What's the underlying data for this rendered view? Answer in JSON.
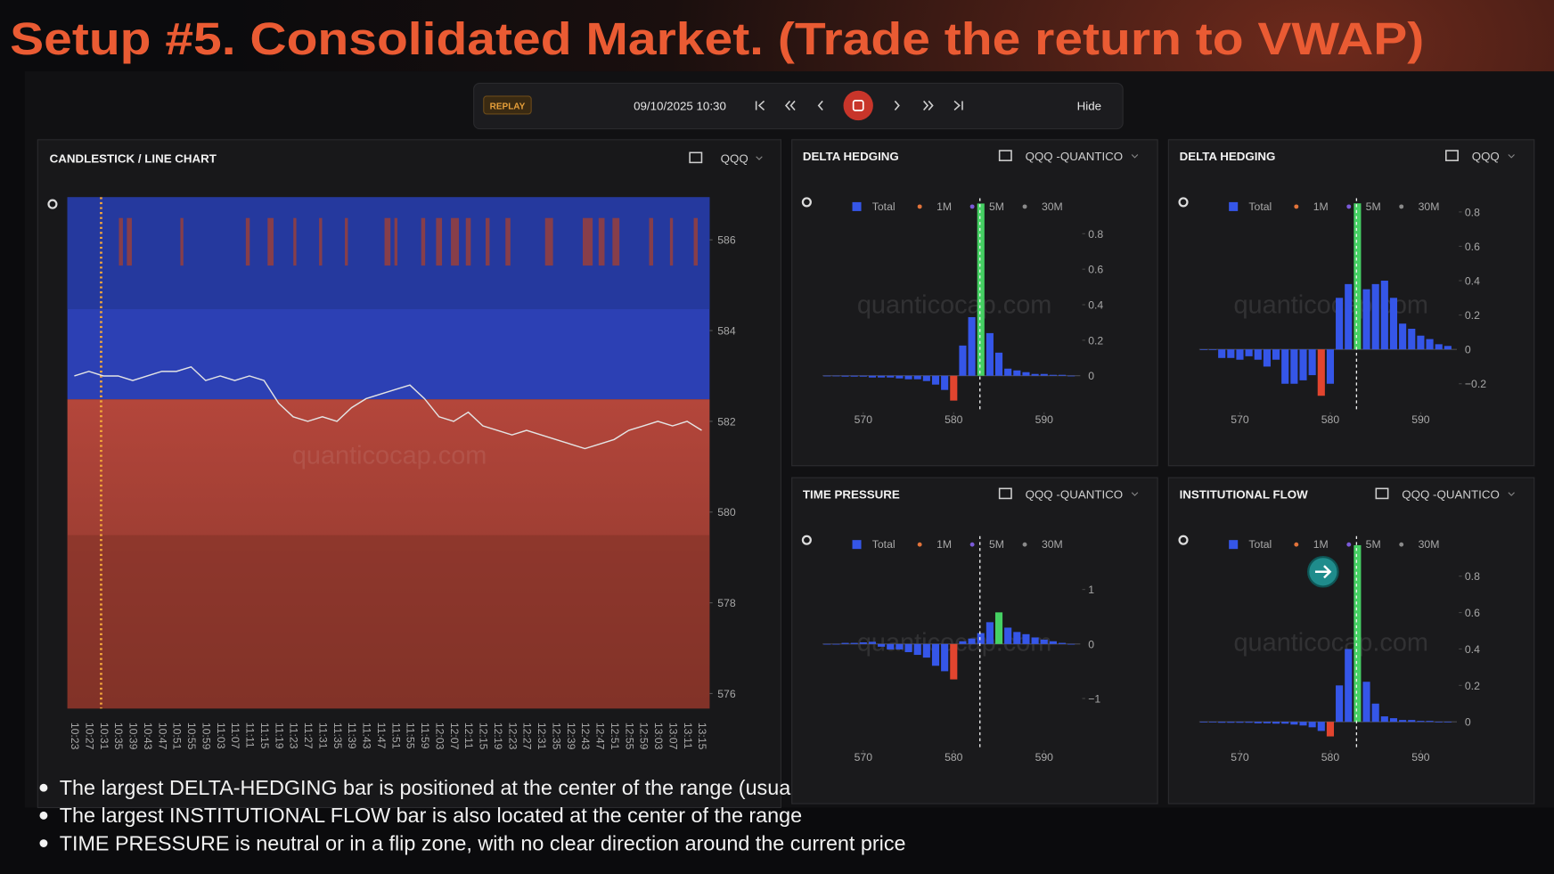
{
  "title": "Setup #5. Consolidated Market. (Trade the return to VWAP)",
  "toolbar": {
    "mode": "REPLAY",
    "datetime": "09/10/2025 10:30",
    "hide": "Hide"
  },
  "candlestick": {
    "type": "line",
    "title": "CANDLESTICK / LINE CHART",
    "symbol": "QQQ",
    "watermark": "quanticocap.com",
    "color": "#e4e4e4",
    "x": [
      "10:23",
      "10:27",
      "10:31",
      "10:35",
      "10:39",
      "10:43",
      "10:47",
      "10:51",
      "10:55",
      "10:59",
      "11:03",
      "11:07",
      "11:11",
      "11:15",
      "11:19",
      "11:23",
      "11:27",
      "11:31",
      "11:35",
      "11:39",
      "11:43",
      "11:47",
      "11:51",
      "11:55",
      "11:59",
      "12:03",
      "12:07",
      "12:11",
      "12:15",
      "12:19",
      "12:23",
      "12:27",
      "12:31",
      "12:35",
      "12:39",
      "12:43",
      "12:47",
      "12:51",
      "12:55",
      "12:59",
      "13:03",
      "13:07",
      "13:11",
      "13:15"
    ],
    "values": [
      583.0,
      583.1,
      583.0,
      583.0,
      582.9,
      583.0,
      583.1,
      583.1,
      583.2,
      582.9,
      583.0,
      582.9,
      583.0,
      582.9,
      582.4,
      582.1,
      582.0,
      582.1,
      582.0,
      582.3,
      582.5,
      582.6,
      582.7,
      582.8,
      582.5,
      582.1,
      582.0,
      582.2,
      581.9,
      581.8,
      581.7,
      581.8,
      581.7,
      581.6,
      581.5,
      581.4,
      581.5,
      581.6,
      581.8,
      581.9,
      582.0,
      581.9,
      582.0,
      581.8
    ],
    "ylim": [
      575.67,
      586.94
    ],
    "yticks": [
      576,
      578,
      580,
      582,
      584,
      586
    ]
  },
  "histograms": [
    {
      "type": "bar",
      "title": "DELTA HEDGING",
      "symbol": "QQQ -QUANTICO",
      "watermark": "quanticocap.com",
      "legend": [
        {
          "name": "Total",
          "color": "#3556e8"
        },
        {
          "name": "1M",
          "color": "#e2733a"
        },
        {
          "name": "5M",
          "color": "#7a5ad8"
        },
        {
          "name": "30M",
          "color": "#8a8a8a"
        }
      ],
      "color": "#3556e8",
      "max_color": "#45d063",
      "min_color": "#e2452f",
      "x": [
        566,
        567,
        568,
        569,
        570,
        571,
        572,
        573,
        574,
        575,
        576,
        577,
        578,
        579,
        580,
        581,
        582,
        583,
        584,
        585,
        586,
        587,
        588,
        589,
        590,
        591,
        592,
        593
      ],
      "values": [
        0,
        0,
        -0.005,
        -0.005,
        -0.005,
        -0.01,
        -0.01,
        -0.01,
        -0.015,
        -0.02,
        -0.02,
        -0.03,
        -0.05,
        -0.08,
        -0.14,
        0.17,
        0.33,
        0.97,
        0.24,
        0.13,
        0.04,
        0.03,
        0.02,
        0.01,
        0.01,
        0.005,
        0.005,
        0
      ],
      "price_line": 582.9,
      "xlim": [
        565.5,
        594
      ],
      "xticks": [
        570,
        580,
        590
      ],
      "ylim": [
        -0.2,
        1.0
      ],
      "yticks": [
        0,
        0.2,
        0.4,
        0.6,
        0.8
      ]
    },
    {
      "type": "bar",
      "title": "DELTA HEDGING",
      "symbol": "QQQ",
      "watermark": "quanticocap.com",
      "legend": [
        {
          "name": "Total",
          "color": "#3556e8"
        },
        {
          "name": "1M",
          "color": "#e2733a"
        },
        {
          "name": "5M",
          "color": "#7a5ad8"
        },
        {
          "name": "30M",
          "color": "#8a8a8a"
        }
      ],
      "color": "#3556e8",
      "max_color": "#45d063",
      "min_color": "#e2452f",
      "x": [
        566,
        567,
        568,
        569,
        570,
        571,
        572,
        573,
        574,
        575,
        576,
        577,
        578,
        579,
        580,
        581,
        582,
        583,
        584,
        585,
        586,
        587,
        588,
        589,
        590,
        591,
        592,
        593
      ],
      "values": [
        0,
        0,
        -0.05,
        -0.05,
        -0.06,
        -0.04,
        -0.06,
        -0.1,
        -0.06,
        -0.2,
        -0.2,
        -0.18,
        -0.15,
        -0.27,
        -0.2,
        0.3,
        0.38,
        0.85,
        0.35,
        0.38,
        0.4,
        0.3,
        0.15,
        0.12,
        0.08,
        0.06,
        0.03,
        0.02
      ],
      "price_line": 582.9,
      "xlim": [
        565.5,
        594
      ],
      "xticks": [
        570,
        580,
        590
      ],
      "ylim": [
        -0.36,
        0.88
      ],
      "yticks": [
        {
          "value": -0.2,
          "label": "−0.2"
        },
        0,
        0.2,
        0.4,
        0.6,
        0.8
      ]
    },
    {
      "type": "bar",
      "title": "TIME PRESSURE",
      "symbol": "QQQ -QUANTICO",
      "watermark": "quanticocap.com",
      "legend": [
        {
          "name": "Total",
          "color": "#3556e8"
        },
        {
          "name": "1M",
          "color": "#e2733a"
        },
        {
          "name": "5M",
          "color": "#7a5ad8"
        },
        {
          "name": "30M",
          "color": "#8a8a8a"
        }
      ],
      "color": "#3556e8",
      "max_color": "#45d063",
      "min_color": "#e2452f",
      "x": [
        566,
        567,
        568,
        569,
        570,
        571,
        572,
        573,
        574,
        575,
        576,
        577,
        578,
        579,
        580,
        581,
        582,
        583,
        584,
        585,
        586,
        587,
        588,
        589,
        590,
        591,
        592,
        593
      ],
      "values": [
        0,
        0,
        0.02,
        0.02,
        0.03,
        0.04,
        -0.05,
        -0.1,
        -0.1,
        -0.15,
        -0.2,
        -0.25,
        -0.4,
        -0.5,
        -0.65,
        0.05,
        0.1,
        0.2,
        0.4,
        0.58,
        0.3,
        0.22,
        0.18,
        0.12,
        0.08,
        0.05,
        0.02,
        0
      ],
      "price_line": 582.9,
      "xlim": [
        565.5,
        594
      ],
      "xticks": [
        570,
        580,
        590
      ],
      "ylim": [
        -1.93,
        1.98
      ],
      "yticks": [
        {
          "value": -1,
          "label": "−1"
        },
        0,
        1
      ]
    },
    {
      "type": "bar",
      "title": "INSTITUTIONAL FLOW",
      "symbol": "QQQ -QUANTICO",
      "watermark": "quanticocap.com",
      "legend": [
        {
          "name": "Total",
          "color": "#3556e8"
        },
        {
          "name": "1M",
          "color": "#e2733a"
        },
        {
          "name": "5M",
          "color": "#7a5ad8"
        },
        {
          "name": "30M",
          "color": "#8a8a8a"
        }
      ],
      "color": "#3556e8",
      "max_color": "#45d063",
      "min_color": "#e2452f",
      "x": [
        566,
        567,
        568,
        569,
        570,
        571,
        572,
        573,
        574,
        575,
        576,
        577,
        578,
        579,
        580,
        581,
        582,
        583,
        584,
        585,
        586,
        587,
        588,
        589,
        590,
        591,
        592,
        593
      ],
      "values": [
        0,
        0,
        -0.005,
        -0.005,
        -0.005,
        -0.005,
        -0.008,
        -0.008,
        -0.01,
        -0.01,
        -0.015,
        -0.02,
        -0.03,
        -0.05,
        -0.08,
        0.2,
        0.4,
        0.97,
        0.22,
        0.1,
        0.03,
        0.02,
        0.01,
        0.01,
        0.005,
        0.005,
        0,
        0
      ],
      "price_line": 582.9,
      "xlim": [
        565.5,
        594
      ],
      "xticks": [
        570,
        580,
        590
      ],
      "ylim": [
        -0.15,
        1.02
      ],
      "yticks": [
        0,
        0.2,
        0.4,
        0.6,
        0.8
      ]
    }
  ],
  "bullets": [
    "The largest DELTA-HEDGING bar is positioned at the center of the range (usually around the VWAP level)",
    "The largest INSTITUTIONAL FLOW bar is also located at the center of the range",
    "TIME PRESSURE is neutral or in a flip zone, with no clear direction around the current price"
  ]
}
